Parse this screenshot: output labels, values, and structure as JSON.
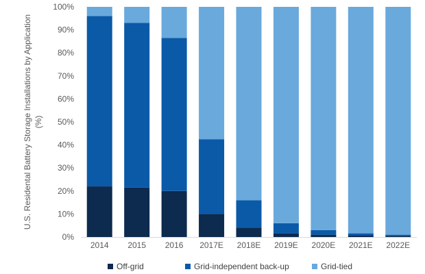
{
  "chart_data": {
    "type": "bar",
    "stacked": true,
    "categories": [
      "2014",
      "2015",
      "2016",
      "2017E",
      "2018E",
      "2019E",
      "2020E",
      "2021E",
      "2022E"
    ],
    "series": [
      {
        "name": "Off-grid",
        "color": "#0d2a4f",
        "values": [
          22,
          21.5,
          20,
          10,
          4,
          1.5,
          1,
          0.8,
          0.5
        ]
      },
      {
        "name": "Grid-independent back-up",
        "color": "#0b5aa8",
        "values": [
          74,
          71.5,
          66.5,
          32.5,
          12,
          4.5,
          2,
          0.8,
          0.5
        ]
      },
      {
        "name": "Grid-tied",
        "color": "#6aa9dc",
        "values": [
          4,
          7,
          13.5,
          57.5,
          84,
          94,
          97,
          98.4,
          99
        ]
      }
    ],
    "y_ticks": [
      "0%",
      "10%",
      "20%",
      "30%",
      "40%",
      "50%",
      "60%",
      "70%",
      "80%",
      "90%",
      "100%"
    ],
    "ylabel_line1": "U.S. Residental Battery Storage Installations by Application",
    "ylabel_line2": "(%)",
    "xlabel": "",
    "ylim": [
      0,
      100
    ],
    "grid": false,
    "legend_position": "bottom"
  }
}
